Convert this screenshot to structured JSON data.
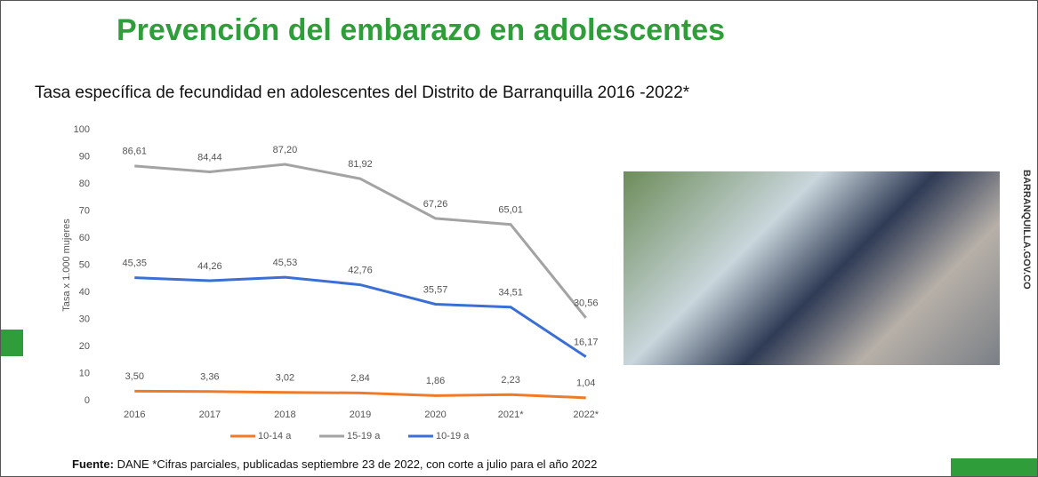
{
  "title": "Prevención del embarazo en adolescentes",
  "side_label": "BARRANQUILLA.GOV.CO",
  "source": {
    "label": "Fuente:",
    "text": "DANE *Cifras parciales, publicadas septiembre 23 de 2022, con corte a julio para el año 2022"
  },
  "chart_data": {
    "type": "line",
    "title": "Tasa específica de fecundidad en adolescentes del Distrito de Barranquilla 2016 -2022*",
    "y_label": "Tasa x 1.000 mujeres",
    "categories": [
      "2016",
      "2017",
      "2018",
      "2019",
      "2020",
      "2021*",
      "2022*"
    ],
    "ylim": [
      0,
      100
    ],
    "yticks": [
      0,
      10,
      20,
      30,
      40,
      50,
      60,
      70,
      80,
      90,
      100
    ],
    "series": [
      {
        "name": "10-14 a",
        "color": "#f07a28",
        "values": [
          3.5,
          3.36,
          3.02,
          2.84,
          1.86,
          2.23,
          1.04
        ],
        "value_labels": [
          "3,50",
          "3,36",
          "3,02",
          "2,84",
          "1,86",
          "2,23",
          "1,04"
        ]
      },
      {
        "name": "15-19 a",
        "color": "#a3a3a3",
        "values": [
          86.61,
          84.44,
          87.2,
          81.92,
          67.26,
          65.01,
          30.56
        ],
        "value_labels": [
          "86,61",
          "84,44",
          "87,20",
          "81,92",
          "67,26",
          "65,01",
          "30,56"
        ]
      },
      {
        "name": "10-19 a",
        "color": "#3c6fd6",
        "values": [
          45.35,
          44.26,
          45.53,
          42.76,
          35.57,
          34.51,
          16.17
        ],
        "value_labels": [
          "45,35",
          "44,26",
          "45,53",
          "42,76",
          "35,57",
          "34,51",
          "16,17"
        ]
      }
    ],
    "legend": "bottom"
  }
}
